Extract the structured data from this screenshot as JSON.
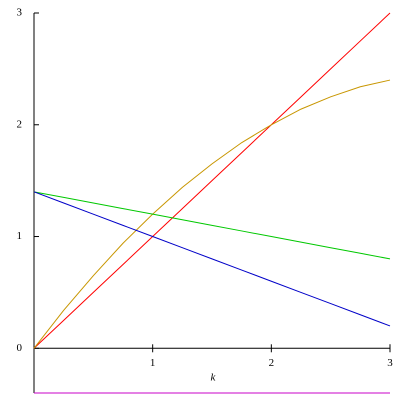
{
  "chart_data": {
    "type": "line",
    "xlabel": "k",
    "x": [
      0,
      0.25,
      0.5,
      0.75,
      1,
      1.25,
      1.5,
      1.75,
      2,
      2.25,
      2.5,
      2.75,
      3
    ],
    "series": [
      {
        "color": "#ff0000",
        "values": [
          0,
          0.25,
          0.5,
          0.75,
          1,
          1.25,
          1.5,
          1.75,
          2,
          2.25,
          2.5,
          2.75,
          3
        ]
      },
      {
        "color": "#c89600",
        "values": [
          0,
          0.34,
          0.65,
          0.94,
          1.2,
          1.44,
          1.65,
          1.84,
          2.0,
          2.14,
          2.25,
          2.34,
          2.4
        ]
      },
      {
        "color": "#00c800",
        "values": [
          1.4,
          1.35,
          1.3,
          1.25,
          1.2,
          1.15,
          1.1,
          1.05,
          1.0,
          0.95,
          0.9,
          0.85,
          0.8
        ]
      },
      {
        "color": "#0000c8",
        "values": [
          1.4,
          1.3,
          1.2,
          1.1,
          1.0,
          0.9,
          0.8,
          0.7,
          0.6,
          0.5,
          0.4,
          0.3,
          0.2
        ]
      },
      {
        "color": "#c800c8",
        "values": [
          -0.4,
          -0.4,
          -0.4,
          -0.4,
          -0.4,
          -0.4,
          -0.4,
          -0.4,
          -0.4,
          -0.4,
          -0.4,
          -0.4,
          -0.4
        ]
      }
    ],
    "xlim": [
      0,
      3
    ],
    "ylim": [
      -0.4,
      3
    ],
    "xticks": [
      1,
      2,
      3
    ],
    "yticks": [
      0,
      1,
      2,
      3
    ]
  }
}
